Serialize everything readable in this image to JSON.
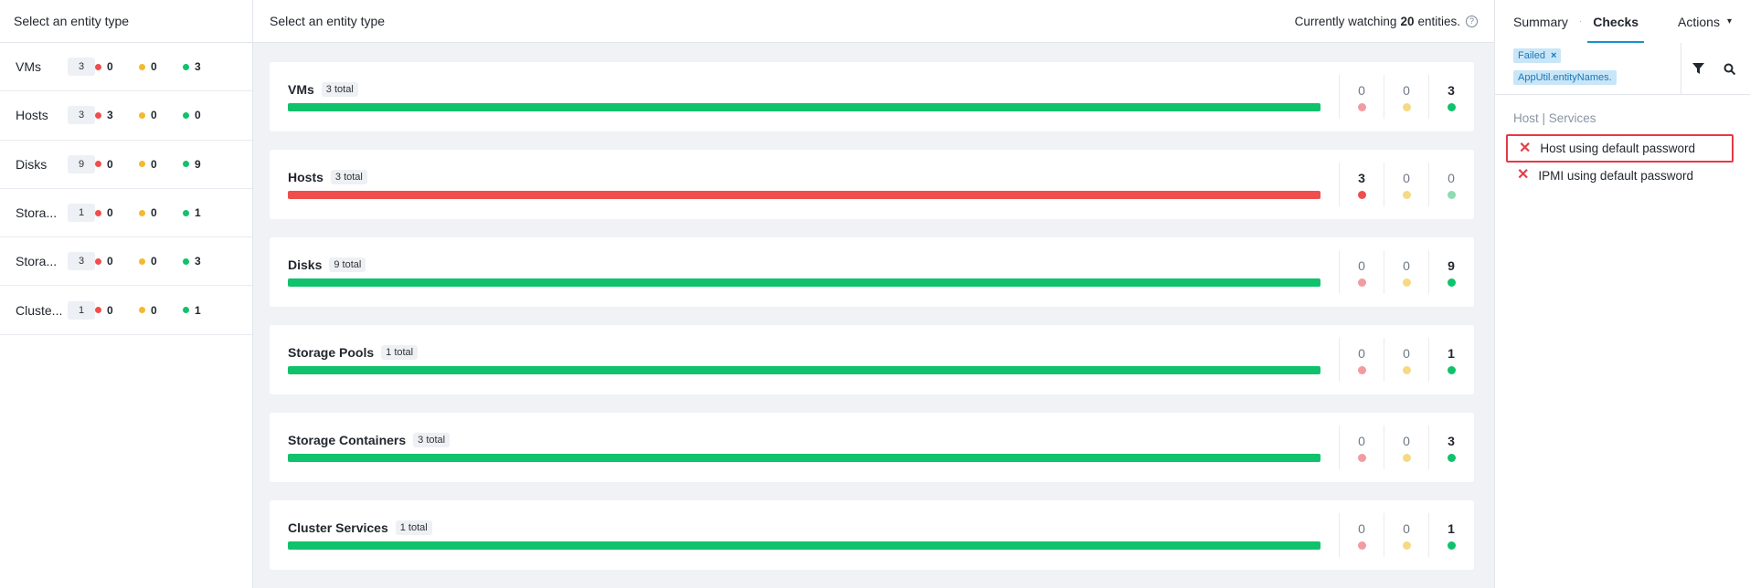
{
  "left": {
    "header": "Select an entity type",
    "rows": [
      {
        "name": "VMs",
        "count": "3",
        "red": "0",
        "yellow": "0",
        "green": "3"
      },
      {
        "name": "Hosts",
        "count": "3",
        "red": "3",
        "yellow": "0",
        "green": "0"
      },
      {
        "name": "Disks",
        "count": "9",
        "red": "0",
        "yellow": "0",
        "green": "9"
      },
      {
        "name": "Stora...",
        "count": "1",
        "red": "0",
        "yellow": "0",
        "green": "1"
      },
      {
        "name": "Stora...",
        "count": "3",
        "red": "0",
        "yellow": "0",
        "green": "3"
      },
      {
        "name": "Cluste...",
        "count": "1",
        "red": "0",
        "yellow": "0",
        "green": "1"
      }
    ]
  },
  "middle": {
    "header": "Select an entity type",
    "watch_prefix": "Currently watching",
    "watch_count": "20",
    "watch_suffix": "entities.",
    "help_icon": "?",
    "cards": [
      {
        "title": "VMs",
        "total": "3 total",
        "red": "0",
        "yellow": "0",
        "green": "3",
        "status": "green"
      },
      {
        "title": "Hosts",
        "total": "3 total",
        "red": "3",
        "yellow": "0",
        "green": "0",
        "status": "red"
      },
      {
        "title": "Disks",
        "total": "9 total",
        "red": "0",
        "yellow": "0",
        "green": "9",
        "status": "green"
      },
      {
        "title": "Storage Pools",
        "total": "1 total",
        "red": "0",
        "yellow": "0",
        "green": "1",
        "status": "green"
      },
      {
        "title": "Storage Containers",
        "total": "3 total",
        "red": "0",
        "yellow": "0",
        "green": "3",
        "status": "green"
      },
      {
        "title": "Cluster Services",
        "total": "1 total",
        "red": "0",
        "yellow": "0",
        "green": "1",
        "status": "green"
      }
    ]
  },
  "right": {
    "tabs": {
      "summary": "Summary",
      "sep": "·",
      "checks": "Checks",
      "actions": "Actions"
    },
    "chips": [
      {
        "label": "Failed",
        "close": "×"
      },
      {
        "label": "AppUtil.entityNames.",
        "close": ""
      }
    ],
    "group_label": "Host | Services",
    "checks": [
      {
        "label": "Host using default password",
        "selected": true
      },
      {
        "label": "IPMI using default password",
        "selected": false
      }
    ]
  },
  "colors": {
    "red": "#f04d4d",
    "yellow": "#f5b82e",
    "green": "#10c26b",
    "red_faded": "#f29ba1",
    "yellow_faded": "#f7d985",
    "green_faded": "#8fdcb2",
    "accent": "#1b8fd6"
  }
}
